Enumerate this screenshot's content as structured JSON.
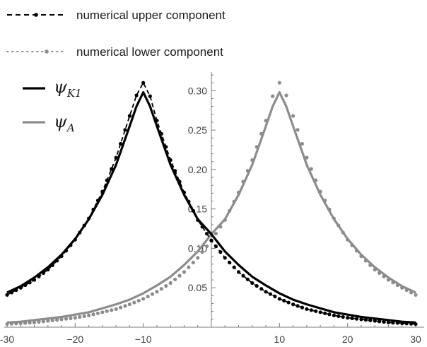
{
  "chart_data": {
    "type": "line",
    "title": "",
    "xlabel": "",
    "ylabel": "",
    "xlim": [
      -30,
      30
    ],
    "ylim": [
      0,
      0.32
    ],
    "x_ticks": [
      -30,
      -20,
      -10,
      10,
      20,
      30
    ],
    "x_tick_labels": [
      "-30",
      "−20",
      "−10",
      "10",
      "20",
      "30"
    ],
    "y_ticks": [
      0.05,
      0.1,
      0.15,
      0.2,
      0.25,
      0.3
    ],
    "y_tick_labels": [
      "0.05",
      "0.10",
      "0.15",
      "0.20",
      "0.25",
      "0.30"
    ],
    "grid": false,
    "legend_position": "top-left",
    "colors": {
      "black": "#000000",
      "gray": "#8c8c8c"
    },
    "series": [
      {
        "name": "numerical upper component",
        "style": "dashed-points",
        "color": "#000000",
        "x": [
          -30,
          -28,
          -26,
          -24,
          -22,
          -20,
          -18,
          -16,
          -14,
          -12,
          -11,
          -10,
          -9,
          -8,
          -6,
          -4,
          -2,
          0,
          2,
          4,
          6,
          8,
          10,
          12,
          14,
          16,
          18,
          20,
          22,
          24,
          26,
          28,
          30
        ],
        "y": [
          0.041,
          0.05,
          0.06,
          0.073,
          0.09,
          0.111,
          0.138,
          0.172,
          0.215,
          0.268,
          0.294,
          0.31,
          0.293,
          0.262,
          0.212,
          0.171,
          0.136,
          0.11,
          0.088,
          0.07,
          0.056,
          0.045,
          0.036,
          0.029,
          0.023,
          0.019,
          0.015,
          0.012,
          0.01,
          0.008,
          0.006,
          0.005,
          0.004
        ]
      },
      {
        "name": "numerical lower component",
        "style": "dotted-points",
        "color": "#8c8c8c",
        "x": [
          -30,
          -28,
          -26,
          -24,
          -22,
          -20,
          -18,
          -16,
          -14,
          -12,
          -10,
          -8,
          -6,
          -4,
          -2,
          0,
          2,
          4,
          6,
          8,
          9,
          10,
          11,
          12,
          14,
          16,
          18,
          20,
          22,
          24,
          26,
          28,
          30
        ],
        "y": [
          0.004,
          0.005,
          0.006,
          0.008,
          0.01,
          0.012,
          0.015,
          0.019,
          0.023,
          0.029,
          0.036,
          0.045,
          0.056,
          0.07,
          0.088,
          0.11,
          0.136,
          0.171,
          0.212,
          0.262,
          0.293,
          0.31,
          0.294,
          0.268,
          0.215,
          0.172,
          0.138,
          0.111,
          0.09,
          0.073,
          0.06,
          0.05,
          0.041
        ]
      },
      {
        "name": "ψK1",
        "style": "solid",
        "color": "#000000",
        "x": [
          -30,
          -28,
          -26,
          -24,
          -22,
          -20,
          -18,
          -16,
          -14,
          -12,
          -11,
          -10,
          -9,
          -8,
          -6,
          -4,
          -2,
          0,
          2,
          4,
          6,
          8,
          10,
          12,
          14,
          16,
          18,
          20,
          22,
          24,
          26,
          28,
          30
        ],
        "y": [
          0.044,
          0.052,
          0.063,
          0.076,
          0.092,
          0.112,
          0.137,
          0.168,
          0.206,
          0.255,
          0.28,
          0.298,
          0.28,
          0.255,
          0.206,
          0.168,
          0.137,
          0.118,
          0.096,
          0.079,
          0.064,
          0.053,
          0.043,
          0.035,
          0.029,
          0.024,
          0.019,
          0.016,
          0.013,
          0.011,
          0.009,
          0.007,
          0.006
        ]
      },
      {
        "name": "ψA",
        "style": "solid",
        "color": "#8c8c8c",
        "x": [
          -30,
          -28,
          -26,
          -24,
          -22,
          -20,
          -18,
          -16,
          -14,
          -12,
          -10,
          -8,
          -6,
          -4,
          -2,
          0,
          2,
          4,
          6,
          8,
          9,
          10,
          11,
          12,
          14,
          16,
          18,
          20,
          22,
          24,
          26,
          28,
          30
        ],
        "y": [
          0.006,
          0.007,
          0.009,
          0.011,
          0.013,
          0.016,
          0.019,
          0.024,
          0.029,
          0.035,
          0.043,
          0.053,
          0.064,
          0.079,
          0.096,
          0.118,
          0.137,
          0.168,
          0.206,
          0.255,
          0.28,
          0.298,
          0.28,
          0.255,
          0.206,
          0.168,
          0.137,
          0.112,
          0.092,
          0.076,
          0.063,
          0.052,
          0.044
        ]
      }
    ],
    "legend": {
      "upper_label": "numerical upper component",
      "lower_label": "numerical lower component",
      "k1_symbol": "ψ",
      "k1_subscript": "K1",
      "a_symbol": "ψ",
      "a_subscript": "A"
    }
  }
}
